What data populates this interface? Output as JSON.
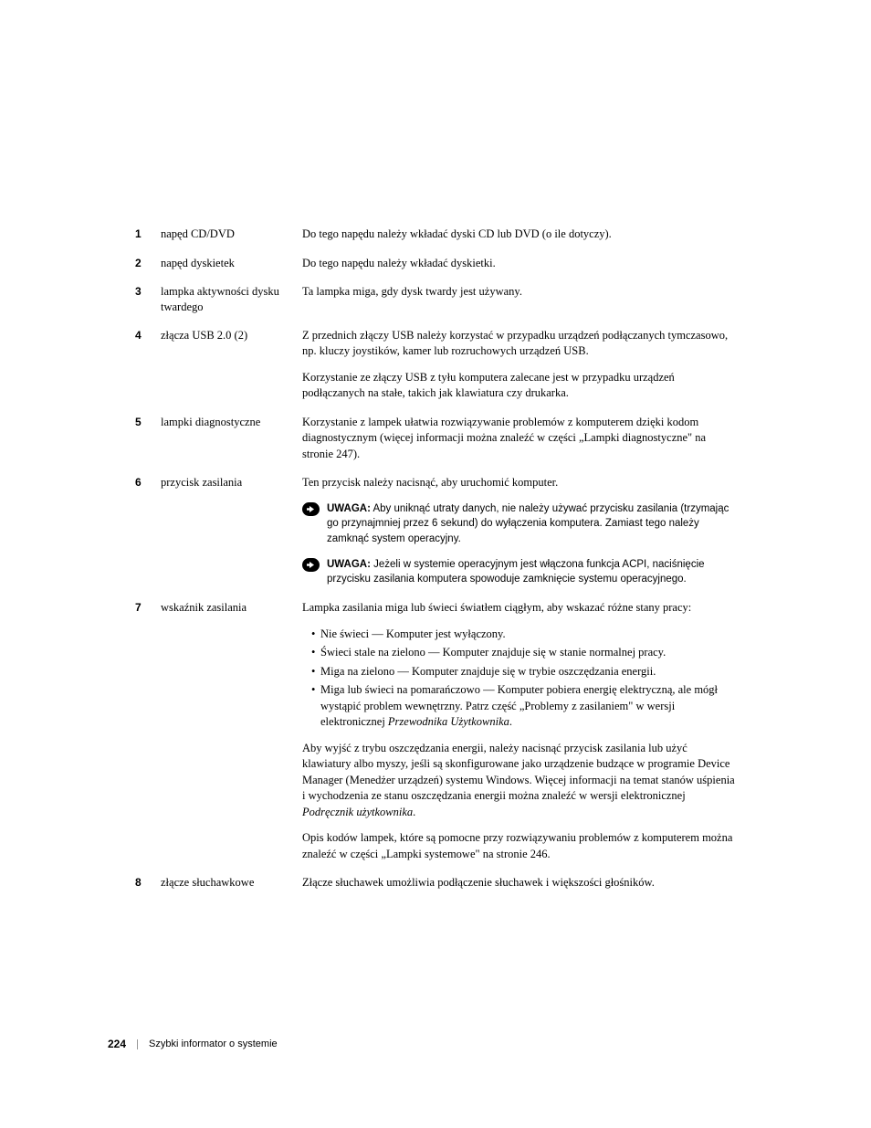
{
  "rows": [
    {
      "num": "1",
      "label": "napęd CD/DVD",
      "blocks": [
        {
          "type": "p",
          "text": "Do tego napędu należy wkładać dyski CD lub DVD (o ile dotyczy)."
        }
      ]
    },
    {
      "num": "2",
      "label": "napęd dyskietek",
      "blocks": [
        {
          "type": "p",
          "text": "Do tego napędu należy wkładać dyskietki."
        }
      ]
    },
    {
      "num": "3",
      "label": "lampka aktywności dysku twardego",
      "blocks": [
        {
          "type": "p",
          "text": "Ta lampka miga, gdy dysk twardy jest używany."
        }
      ]
    },
    {
      "num": "4",
      "label": "złącza USB 2.0 (2)",
      "blocks": [
        {
          "type": "p",
          "text": "Z przednich złączy USB należy korzystać w przypadku urządzeń podłączanych tymczasowo, np. kluczy joystików, kamer lub rozruchowych urządzeń USB."
        },
        {
          "type": "p",
          "text": "Korzystanie ze złączy USB z tyłu komputera zalecane jest w przypadku urządzeń podłączanych na stałe, takich jak klawiatura czy drukarka."
        }
      ]
    },
    {
      "num": "5",
      "label": "lampki diagnostyczne",
      "blocks": [
        {
          "type": "p",
          "text": "Korzystanie z lampek ułatwia rozwiązywanie problemów z komputerem dzięki kodom diagnostycznym (więcej informacji można znaleźć w części „Lampki diagnostyczne\" na stronie 247)."
        }
      ]
    },
    {
      "num": "6",
      "label": "przycisk zasilania",
      "blocks": [
        {
          "type": "p",
          "text": "Ten przycisk należy nacisnąć, aby uruchomić komputer."
        },
        {
          "type": "note",
          "label": "UWAGA:",
          "text": " Aby uniknąć utraty danych, nie należy używać przycisku zasilania (trzymając go przynajmniej przez 6 sekund) do wyłączenia komputera. Zamiast tego należy zamknąć system operacyjny."
        },
        {
          "type": "note",
          "label": "UWAGA:",
          "text": " Jeżeli w systemie operacyjnym jest włączona funkcja ACPI, naciśnięcie przycisku zasilania komputera spowoduje zamknięcie systemu operacyjnego."
        }
      ]
    },
    {
      "num": "7",
      "label": "wskaźnik zasilania",
      "blocks": [
        {
          "type": "p",
          "text": "Lampka zasilania miga lub świeci światłem ciągłym, aby wskazać różne stany pracy:"
        },
        {
          "type": "ul",
          "items": [
            "Nie świeci — Komputer jest wyłączony.",
            "Świeci stale na zielono — Komputer znajduje się w stanie normalnej pracy.",
            "Miga na zielono — Komputer znajduje się w trybie oszczędzania energii.",
            "Miga lub świeci na pomarańczowo — Komputer pobiera energię elektryczną, ale mógł wystąpić problem wewnętrzny. Patrz część „Problemy z zasilaniem\" w wersji elektronicznej <i>Przewodnika Użytkownika</i>."
          ]
        },
        {
          "type": "p_html",
          "html": "Aby wyjść z trybu oszczędzania energii, należy nacisnąć przycisk zasilania lub użyć klawiatury albo myszy, jeśli są skonfigurowane jako urządzenie budzące w programie Device Manager (Menedżer urządzeń) systemu Windows. Więcej informacji na temat stanów uśpienia i wychodzenia ze stanu oszczędzania energii można znaleźć w wersji elektronicznej <i>Podręcznik użytkownika</i>."
        },
        {
          "type": "p",
          "text": "Opis kodów lampek, które są pomocne przy rozwiązywaniu problemów z komputerem można znaleźć w części „Lampki systemowe\" na stronie 246."
        }
      ]
    },
    {
      "num": "8",
      "label": "złącze słuchawkowe",
      "blocks": [
        {
          "type": "p",
          "text": "Złącze słuchawek umożliwia podłączenie słuchawek i większości głośników."
        }
      ]
    }
  ],
  "footer": {
    "page": "224",
    "title": "Szybki informator o systemie"
  },
  "colors": {
    "text": "#000000",
    "bg": "#ffffff",
    "sep": "#999999"
  }
}
